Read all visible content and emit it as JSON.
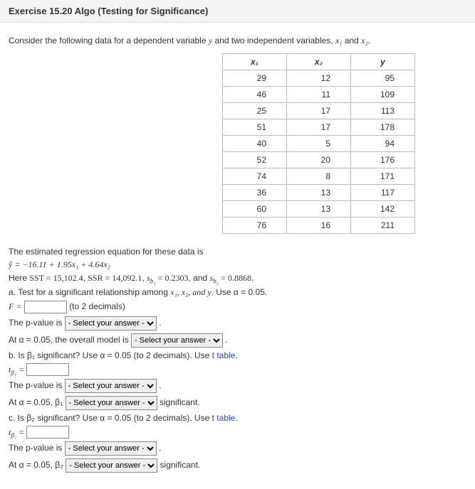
{
  "header": {
    "title": "Exercise 15.20 Algo (Testing for Significance)"
  },
  "intro": {
    "pre": "Consider the following data for a dependent variable ",
    "yvar": "y",
    "mid": " and two independent variables, ",
    "x1": "x₁",
    "and": " and ",
    "x2": "x₂",
    "end": "."
  },
  "table": {
    "headers": [
      "x₁",
      "x₂",
      "y"
    ],
    "rows": [
      [
        "29",
        "12",
        "95"
      ],
      [
        "46",
        "11",
        "109"
      ],
      [
        "25",
        "17",
        "113"
      ],
      [
        "51",
        "17",
        "178"
      ],
      [
        "40",
        "5",
        "94"
      ],
      [
        "52",
        "20",
        "176"
      ],
      [
        "74",
        "8",
        "171"
      ],
      [
        "36",
        "13",
        "117"
      ],
      [
        "60",
        "13",
        "142"
      ],
      [
        "76",
        "16",
        "211"
      ]
    ]
  },
  "eq": {
    "lead": "The estimated regression equation for these data is",
    "formula": "ŷ = −16.11 + 1.95x₁ + 4.64x₂",
    "here_pre": "Here ",
    "sst": "SST = 15,102.4",
    "ssr": "SSR = 14,092.1",
    "sb1": "s_{b₁} = 0.2303",
    "sb2_and": ", and ",
    "sb2": "s_{b₂} = 0.8868",
    "end": "."
  },
  "a": {
    "prompt_pre": "a. Test for a significant relationship among ",
    "vars": "x₁, x₂, and y",
    "use": ". Use α = 0.05.",
    "F_label": "F =",
    "F_hint": "(to 2 decimals)",
    "pval_pre": "The p-value is ",
    "overall_pre": "At α = 0.05, the overall model is "
  },
  "b": {
    "prompt_pre": "b. Is β₁ significant? Use α = 0.05 (to 2 decimals). Use ",
    "tlink": "t table",
    "tlabel": "t_{β₁} =",
    "pval_pre": "The p-value is ",
    "atalpha_pre": "At α = 0.05, β₁ ",
    "sig_suffix": " significant."
  },
  "c": {
    "prompt_pre": "c. Is β₂ significant? Use α = 0.05 (to 2 decimals). Use ",
    "tlink": "t table",
    "tlabel": "t_{β₂} =",
    "pval_pre": "The p-value is ",
    "atalpha_pre": "At α = 0.05, β₂ ",
    "sig_suffix": " significant."
  },
  "select_placeholder": "- Select your answer -",
  "period": "."
}
